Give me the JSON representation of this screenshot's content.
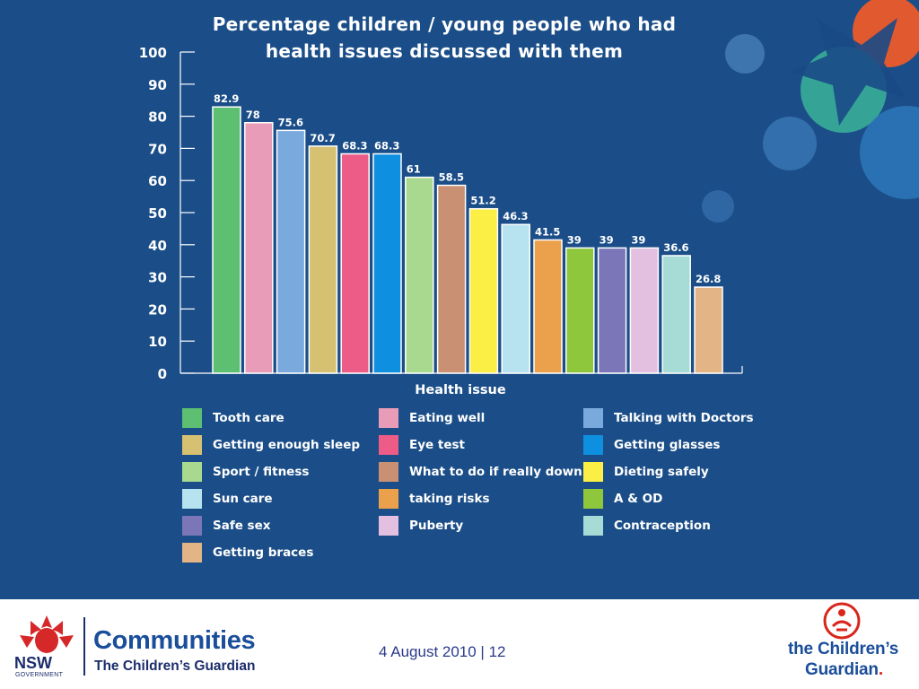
{
  "chart_data": {
    "type": "bar",
    "title_lines": [
      "Percentage children / young people who had",
      "health issues discussed with them"
    ],
    "xlabel": "Health issue",
    "ylabel": "",
    "ylim": [
      0,
      100
    ],
    "yticks": [
      "0",
      "10",
      "20",
      "30",
      "40",
      "50",
      "60",
      "70",
      "80",
      "90",
      "100"
    ],
    "legend_position": "bottom",
    "grid": false,
    "categories": [
      "Tooth care",
      "Eating well",
      "Talking with Doctors",
      "Getting enough sleep",
      "Eye test",
      "Getting glasses",
      "Sport / fitness",
      "What to do if really down",
      "Dieting safely",
      "Sun care",
      "taking risks",
      "A & OD",
      "Safe sex",
      "Puberty",
      "Contraception",
      "Getting braces"
    ],
    "values": [
      82.9,
      78,
      75.6,
      70.7,
      68.3,
      68.3,
      61,
      58.5,
      51.2,
      46.3,
      41.5,
      39,
      39,
      39,
      36.6,
      26.8
    ],
    "value_labels": [
      "82.9",
      "78",
      "75.6",
      "70.7",
      "68.3",
      "68.3",
      "61",
      "58.5",
      "51.2",
      "46.3",
      "41.5",
      "39",
      "39",
      "39",
      "36.6",
      "26.8"
    ],
    "colors": [
      "#5cbf72",
      "#e89cb8",
      "#7aa9dd",
      "#d6c172",
      "#ec5c87",
      "#0f8fdf",
      "#a9d98f",
      "#c99074",
      "#fbee44",
      "#b6e3ef",
      "#eba14c",
      "#8ec63c",
      "#7b76b8",
      "#e3bfe0",
      "#a7dcd6",
      "#e3b486"
    ]
  },
  "footer": {
    "date_page": "4 August 2010 | 12",
    "nsw_label": "NSW",
    "nsw_sub": "GOVERNMENT",
    "brand_line1": "Communities",
    "brand_line2": "The Children’s Guardian",
    "cg_line1": "the Children’s",
    "cg_line2": "Guardian",
    "cg_dot": "."
  },
  "colors": {
    "background": "#1b4e88",
    "text": "#ffffff",
    "brand_blue": "#1b4e9a",
    "brand_red": "#d9261c"
  }
}
